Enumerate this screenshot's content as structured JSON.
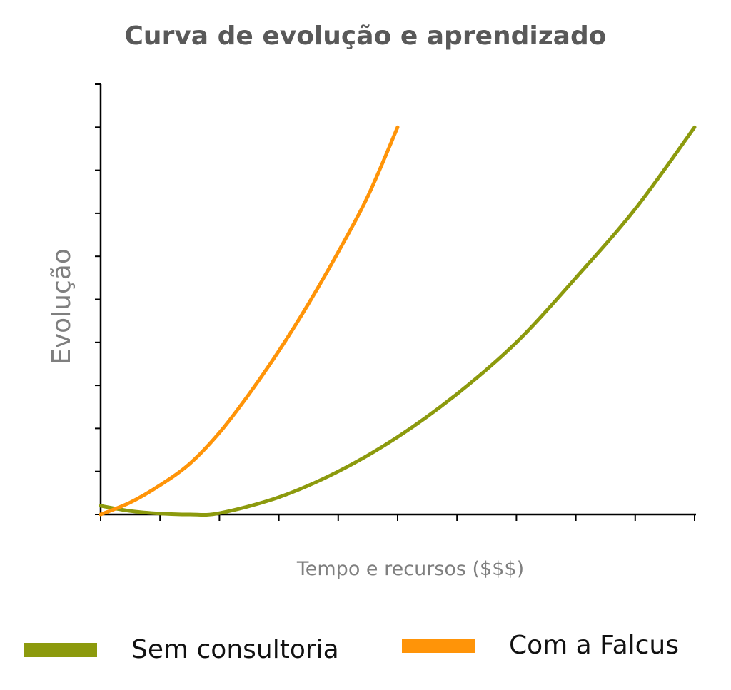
{
  "chart_data": {
    "type": "line",
    "title": "Curva de evolução e aprendizado",
    "xlabel": "Tempo e recursos ($$$)",
    "ylabel": "Evolução",
    "xlim": [
      0,
      10
    ],
    "ylim": [
      0,
      10
    ],
    "x_ticks": 10,
    "y_ticks": 10,
    "tick_labels": false,
    "grid": false,
    "legend_position": "bottom",
    "series": [
      {
        "name": "Sem consultoria",
        "color": "#8c9a0d",
        "x": [
          0,
          0.5,
          1,
          1.5,
          2,
          3,
          4,
          5,
          6,
          7,
          8,
          9,
          10
        ],
        "y": [
          0.2,
          0.08,
          0.02,
          0,
          0.03,
          0.4,
          1.0,
          1.8,
          2.8,
          4.0,
          5.5,
          7.1,
          9.0
        ]
      },
      {
        "name": "Com a Falcus",
        "color": "#ff9408",
        "x": [
          0,
          0.5,
          1,
          1.5,
          2,
          2.5,
          3,
          3.5,
          4,
          4.5,
          5
        ],
        "y": [
          0,
          0.28,
          0.68,
          1.18,
          1.9,
          2.8,
          3.8,
          4.9,
          6.1,
          7.4,
          9.0
        ]
      }
    ]
  }
}
